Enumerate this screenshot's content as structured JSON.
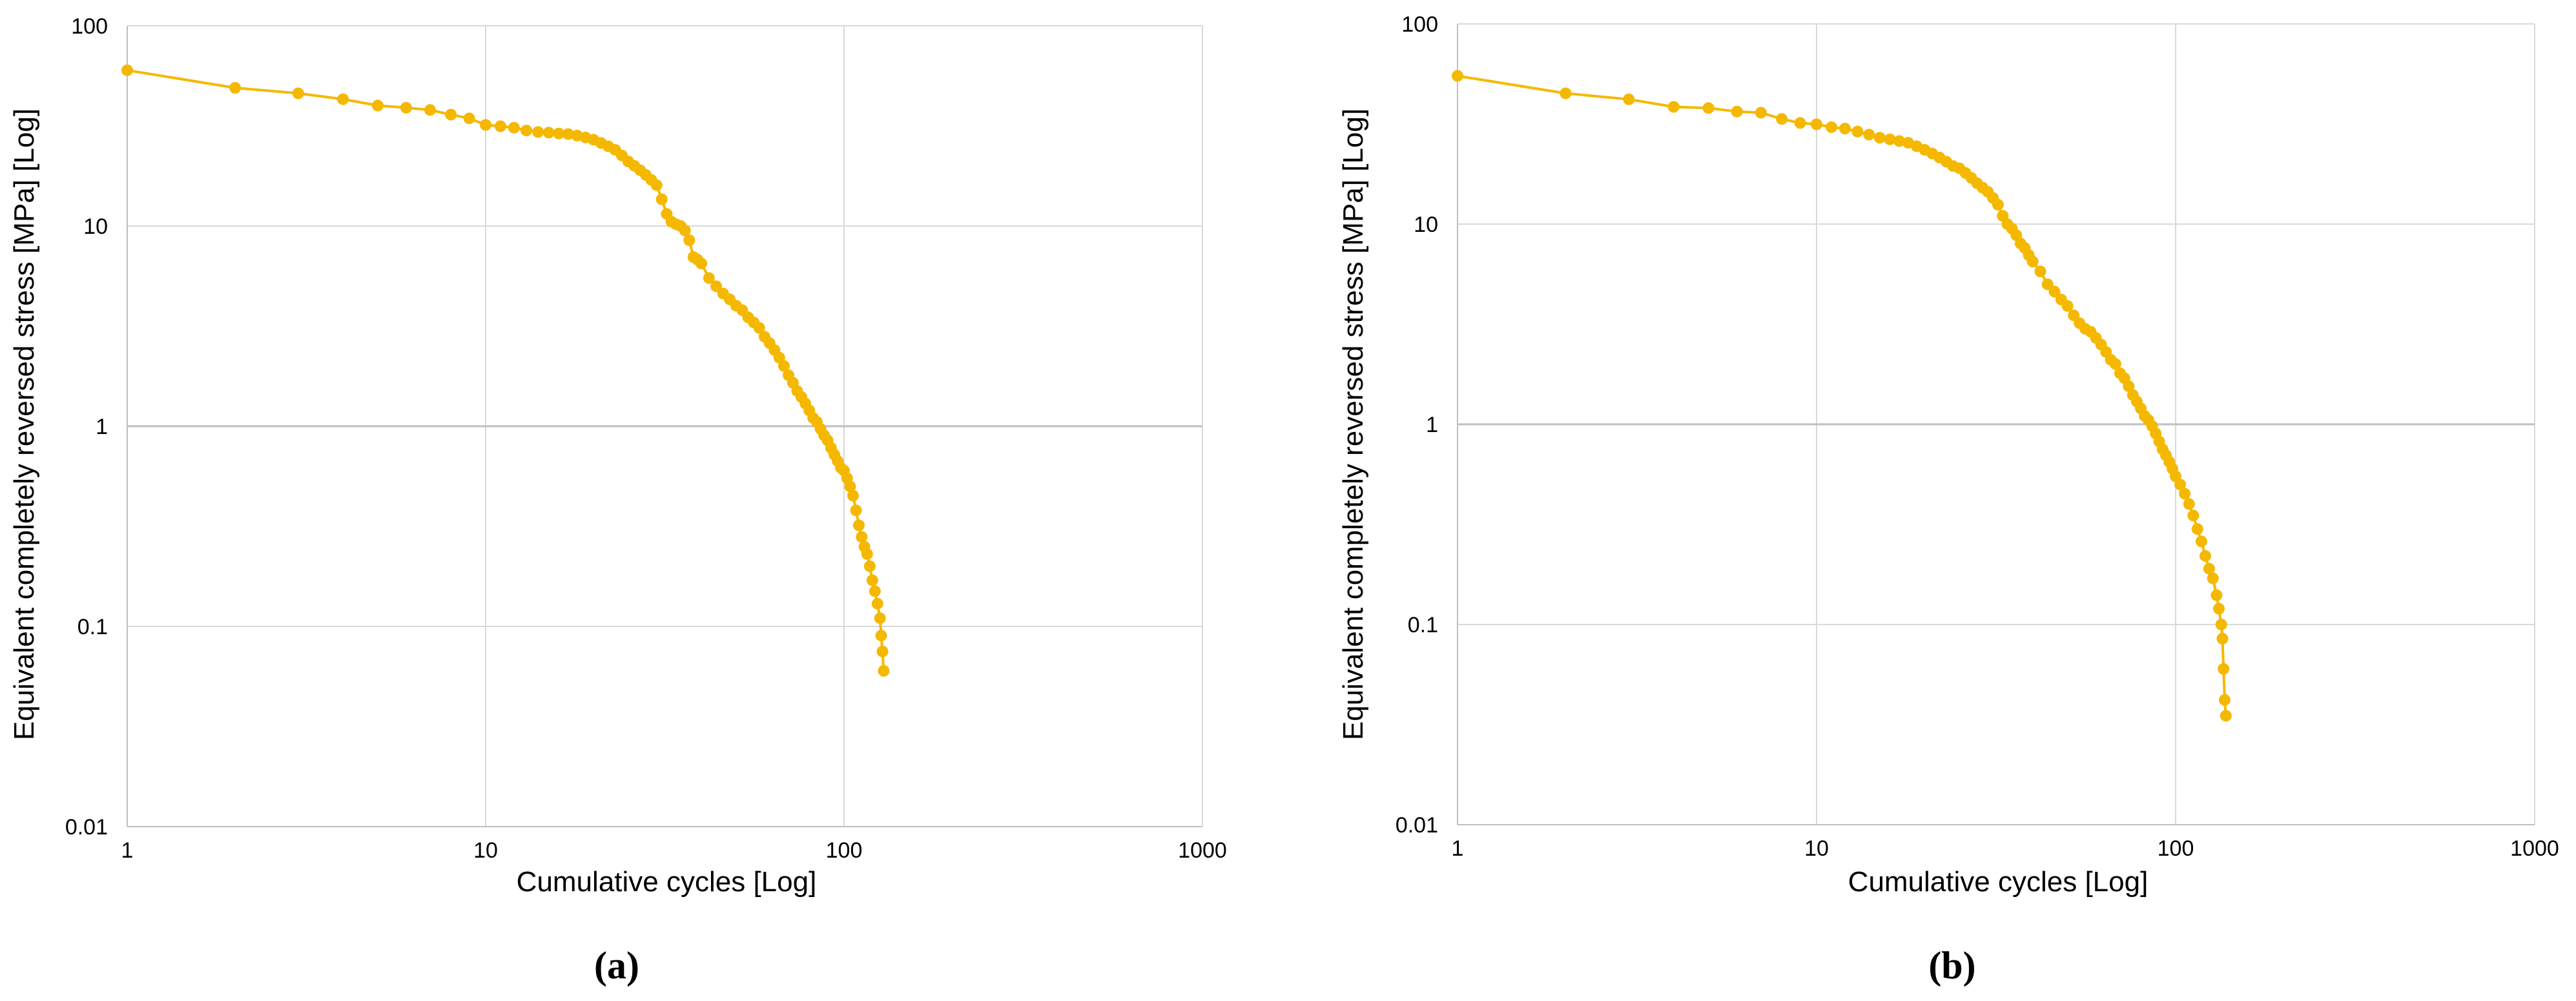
{
  "series_color": "#F5B800",
  "grid_color": "#d9d9d9",
  "chart_data": [
    {
      "type": "scatter",
      "panel_label": "(a)",
      "xlabel": "Cumulative cycles [Log]",
      "ylabel": "Equivalent completely reversed stress [MPa] [Log]",
      "x_scale": "log",
      "y_scale": "log",
      "xlim": [
        1,
        1000
      ],
      "ylim": [
        0.01,
        100
      ],
      "x_ticks": [
        "1",
        "10",
        "100",
        "1000"
      ],
      "y_ticks": [
        "0.01",
        "0.1",
        "1",
        "10",
        "100"
      ],
      "grid": true,
      "lines_connect_points": true,
      "series": [
        {
          "x": [
            1,
            2,
            3,
            4,
            5,
            6,
            7,
            8,
            9,
            10,
            11,
            12,
            13,
            14,
            15,
            16,
            17,
            18,
            19,
            20,
            21,
            22,
            23,
            24,
            25,
            26,
            27,
            28,
            29,
            30,
            31,
            32,
            33,
            34,
            35,
            36,
            37,
            38,
            39,
            40,
            42,
            44,
            46,
            48,
            50,
            52,
            54,
            56,
            58,
            60,
            62,
            64,
            66,
            68,
            70,
            72,
            74,
            76,
            78,
            80,
            82,
            84,
            86,
            88,
            90,
            92,
            94,
            96,
            98,
            100,
            102,
            104,
            106,
            108,
            110,
            112,
            114,
            116,
            118,
            120,
            122,
            124,
            126,
            127,
            128,
            129
          ],
          "y": [
            60,
            49,
            46,
            43,
            40,
            39,
            38,
            36,
            34.5,
            32,
            31.5,
            31,
            30,
            29.5,
            29.3,
            29,
            28.8,
            28.3,
            27.7,
            27,
            26,
            25,
            24,
            22.5,
            21,
            20,
            19,
            18,
            17,
            16,
            13.6,
            11.5,
            10.5,
            10.2,
            10,
            9.5,
            8.5,
            7,
            6.8,
            6.5,
            5.5,
            5,
            4.6,
            4.3,
            4,
            3.8,
            3.5,
            3.3,
            3.1,
            2.8,
            2.6,
            2.4,
            2.2,
            2,
            1.8,
            1.65,
            1.5,
            1.4,
            1.3,
            1.2,
            1.1,
            1.05,
            0.97,
            0.9,
            0.85,
            0.78,
            0.72,
            0.67,
            0.62,
            0.6,
            0.55,
            0.5,
            0.45,
            0.38,
            0.32,
            0.28,
            0.25,
            0.23,
            0.2,
            0.17,
            0.15,
            0.13,
            0.11,
            0.09,
            0.075,
            0.06
          ]
        }
      ]
    },
    {
      "type": "scatter",
      "panel_label": "(b)",
      "xlabel": "Cumulative cycles [Log]",
      "ylabel": "Equivalent completely reversed stress [MPa] [Log]",
      "x_scale": "log",
      "y_scale": "log",
      "xlim": [
        1,
        1000
      ],
      "ylim": [
        0.01,
        100
      ],
      "x_ticks": [
        "1",
        "10",
        "100",
        "1000"
      ],
      "y_ticks": [
        "0.01",
        "0.1",
        "1",
        "10",
        "100"
      ],
      "grid": true,
      "lines_connect_points": true,
      "series": [
        {
          "x": [
            1,
            2,
            3,
            4,
            5,
            6,
            7,
            8,
            9,
            10,
            11,
            12,
            13,
            14,
            15,
            16,
            17,
            18,
            19,
            20,
            21,
            22,
            23,
            24,
            25,
            26,
            27,
            28,
            29,
            30,
            31,
            32,
            33,
            34,
            35,
            36,
            37,
            38,
            39,
            40,
            42,
            44,
            46,
            48,
            50,
            52,
            54,
            56,
            58,
            60,
            62,
            64,
            66,
            68,
            70,
            72,
            74,
            76,
            78,
            80,
            82,
            84,
            86,
            88,
            90,
            92,
            94,
            96,
            98,
            100,
            103,
            106,
            109,
            112,
            115,
            118,
            121,
            124,
            127,
            130,
            132,
            134,
            135,
            136,
            137,
            138
          ],
          "y": [
            55,
            45,
            42,
            38.5,
            38,
            36.5,
            36,
            33.5,
            32,
            31.5,
            30.5,
            30,
            29,
            28,
            27,
            26.5,
            26,
            25.5,
            24.5,
            23.5,
            22.5,
            21.5,
            20.5,
            19.5,
            19,
            18,
            17,
            16,
            15.2,
            14.5,
            13.5,
            12.5,
            11,
            10,
            9.5,
            8.8,
            8,
            7.6,
            7,
            6.5,
            5.8,
            5,
            4.6,
            4.2,
            3.9,
            3.5,
            3.2,
            3,
            2.9,
            2.7,
            2.5,
            2.3,
            2.1,
            2,
            1.8,
            1.7,
            1.55,
            1.4,
            1.3,
            1.2,
            1.1,
            1.05,
            0.98,
            0.9,
            0.82,
            0.75,
            0.7,
            0.65,
            0.6,
            0.55,
            0.5,
            0.45,
            0.4,
            0.35,
            0.3,
            0.26,
            0.22,
            0.19,
            0.17,
            0.14,
            0.12,
            0.1,
            0.085,
            0.06,
            0.042,
            0.035
          ]
        }
      ]
    }
  ]
}
